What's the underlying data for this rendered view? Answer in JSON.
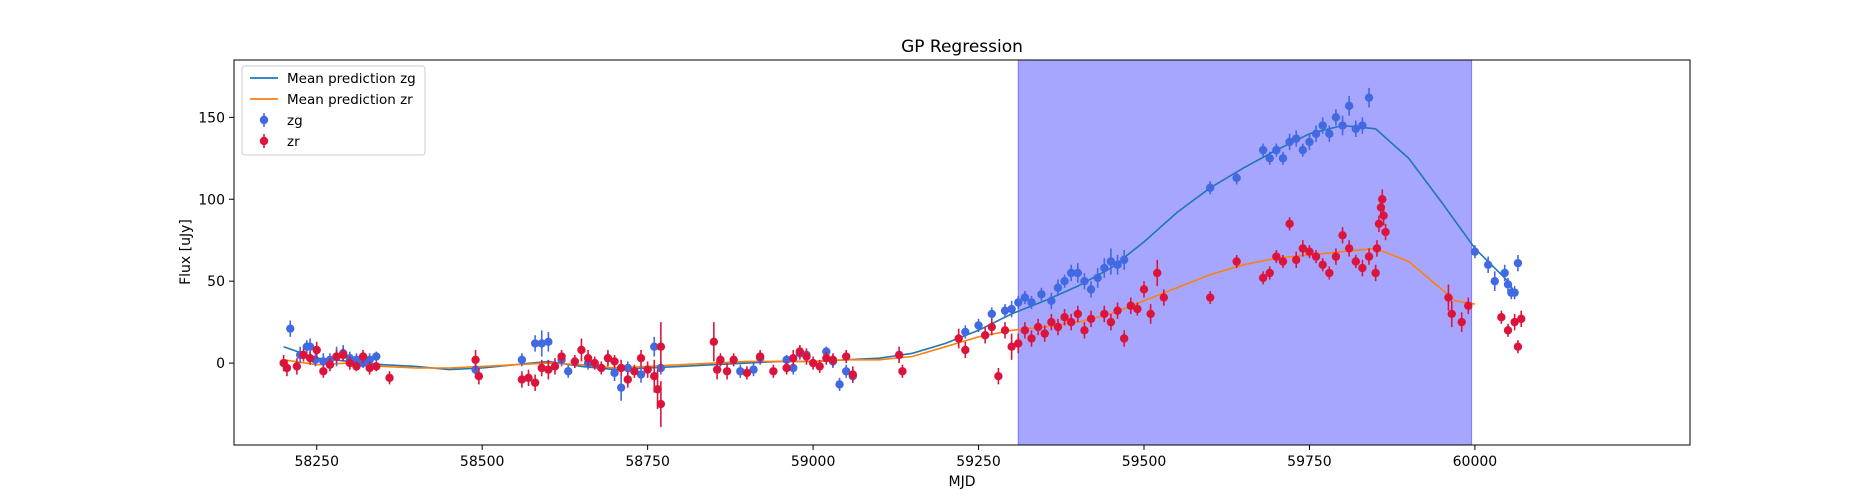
{
  "chart_data": {
    "type": "scatter",
    "title": "GP Regression",
    "xlabel": "MJD",
    "ylabel": "Flux [uJy]",
    "xlim": [
      58125,
      60325
    ],
    "ylim": [
      -50,
      185
    ],
    "xticks": [
      58250,
      58500,
      58750,
      59000,
      59250,
      59500,
      59750,
      60000
    ],
    "yticks": [
      0,
      50,
      100,
      150
    ],
    "grid": false,
    "legend_position": "top-left",
    "shaded_region": {
      "x_start": 59310,
      "x_end": 59995,
      "color": "#a6a6ff"
    },
    "legend": [
      {
        "label": "Mean prediction zg",
        "kind": "line",
        "color": "#1f77b4"
      },
      {
        "label": "Mean prediction zr",
        "kind": "line",
        "color": "#ff7f0e"
      },
      {
        "label": "zg",
        "kind": "marker",
        "color": "#4169e1"
      },
      {
        "label": "zr",
        "kind": "marker",
        "color": "#dc143c"
      }
    ],
    "lines": [
      {
        "name": "Mean prediction zg",
        "color": "#1f77b4",
        "x": [
          58200,
          58250,
          58300,
          58350,
          58400,
          58450,
          58500,
          58550,
          58600,
          58650,
          58700,
          58750,
          58800,
          58850,
          58900,
          58950,
          59000,
          59050,
          59100,
          59150,
          59200,
          59250,
          59300,
          59350,
          59400,
          59450,
          59500,
          59550,
          59600,
          59650,
          59700,
          59750,
          59800,
          59850,
          59900,
          59950,
          60000,
          60050,
          60060
        ],
        "y": [
          10,
          3,
          1,
          -1,
          -2,
          -4,
          -3,
          -1,
          1,
          -2,
          -4,
          -3,
          -2,
          -1,
          0,
          1,
          1,
          2,
          3,
          6,
          12,
          20,
          30,
          38,
          47,
          58,
          74,
          92,
          107,
          119,
          130,
          140,
          145,
          143,
          125,
          98,
          70,
          50,
          43
        ]
      },
      {
        "name": "Mean prediction zr",
        "color": "#ff7f0e",
        "x": [
          58200,
          58250,
          58300,
          58350,
          58400,
          58450,
          58500,
          58550,
          58600,
          58650,
          58700,
          58750,
          58800,
          58850,
          58900,
          58950,
          59000,
          59050,
          59100,
          59150,
          59200,
          59250,
          59300,
          59350,
          59400,
          59450,
          59500,
          59550,
          59600,
          59650,
          59700,
          59750,
          59800,
          59850,
          59900,
          59950,
          59970,
          60000
        ],
        "y": [
          2,
          -1,
          0,
          -2,
          -3,
          -3,
          -2,
          -1,
          0,
          -1,
          -3,
          -2,
          -1,
          0,
          1,
          1,
          1,
          2,
          2,
          4,
          10,
          16,
          20,
          22,
          25,
          30,
          38,
          46,
          54,
          60,
          64,
          66,
          68,
          70,
          62,
          45,
          38,
          36
        ]
      }
    ],
    "series": [
      {
        "name": "zg",
        "color": "#4169e1",
        "points": [
          [
            58210,
            21,
            5
          ],
          [
            58225,
            5,
            5
          ],
          [
            58235,
            10,
            4
          ],
          [
            58240,
            10,
            5
          ],
          [
            58248,
            2,
            4
          ],
          [
            58260,
            1,
            5
          ],
          [
            58270,
            2,
            4
          ],
          [
            58280,
            4,
            6
          ],
          [
            58290,
            6,
            5
          ],
          [
            58300,
            3,
            4
          ],
          [
            58310,
            2,
            4
          ],
          [
            58320,
            0,
            3
          ],
          [
            58330,
            2,
            4
          ],
          [
            58340,
            4,
            3
          ],
          [
            58490,
            -4,
            5
          ],
          [
            58560,
            2,
            4
          ],
          [
            58580,
            12,
            5
          ],
          [
            58590,
            12,
            8
          ],
          [
            58600,
            13,
            6
          ],
          [
            58620,
            2,
            4
          ],
          [
            58630,
            -5,
            4
          ],
          [
            58660,
            0,
            4
          ],
          [
            58690,
            3,
            4
          ],
          [
            58700,
            -6,
            5
          ],
          [
            58710,
            -15,
            8
          ],
          [
            58720,
            -3,
            4
          ],
          [
            58740,
            -7,
            5
          ],
          [
            58760,
            10,
            6
          ],
          [
            58770,
            -3,
            4
          ],
          [
            58890,
            -5,
            4
          ],
          [
            58910,
            -4,
            4
          ],
          [
            58920,
            3,
            4
          ],
          [
            58960,
            2,
            3
          ],
          [
            58970,
            -3,
            4
          ],
          [
            58980,
            6,
            4
          ],
          [
            58990,
            5,
            3
          ],
          [
            59020,
            7,
            3
          ],
          [
            59030,
            1,
            4
          ],
          [
            59040,
            -13,
            4
          ],
          [
            59050,
            -5,
            4
          ],
          [
            59060,
            -8,
            4
          ],
          [
            59230,
            19,
            4
          ],
          [
            59250,
            23,
            4
          ],
          [
            59270,
            30,
            4
          ],
          [
            59290,
            32,
            4
          ],
          [
            59300,
            33,
            5
          ],
          [
            59310,
            37,
            4
          ],
          [
            59320,
            40,
            4
          ],
          [
            59330,
            37,
            4
          ],
          [
            59345,
            42,
            4
          ],
          [
            59360,
            38,
            5
          ],
          [
            59370,
            46,
            5
          ],
          [
            59380,
            50,
            4
          ],
          [
            59390,
            55,
            5
          ],
          [
            59400,
            55,
            6
          ],
          [
            59410,
            50,
            5
          ],
          [
            59420,
            45,
            5
          ],
          [
            59430,
            52,
            6
          ],
          [
            59440,
            58,
            6
          ],
          [
            59450,
            62,
            8
          ],
          [
            59460,
            60,
            6
          ],
          [
            59470,
            63,
            6
          ],
          [
            59600,
            107,
            4
          ],
          [
            59640,
            113,
            4
          ],
          [
            59680,
            130,
            4
          ],
          [
            59690,
            125,
            4
          ],
          [
            59700,
            130,
            4
          ],
          [
            59710,
            125,
            4
          ],
          [
            59720,
            135,
            5
          ],
          [
            59730,
            137,
            5
          ],
          [
            59740,
            130,
            4
          ],
          [
            59750,
            135,
            5
          ],
          [
            59760,
            140,
            5
          ],
          [
            59770,
            145,
            5
          ],
          [
            59780,
            140,
            5
          ],
          [
            59790,
            150,
            5
          ],
          [
            59800,
            145,
            6
          ],
          [
            59810,
            157,
            6
          ],
          [
            59820,
            143,
            5
          ],
          [
            59830,
            145,
            5
          ],
          [
            59840,
            162,
            6
          ],
          [
            60000,
            68,
            4
          ],
          [
            60020,
            60,
            5
          ],
          [
            60030,
            50,
            6
          ],
          [
            60045,
            55,
            5
          ],
          [
            60050,
            48,
            4
          ],
          [
            60055,
            43,
            4
          ],
          [
            60060,
            43,
            4
          ],
          [
            60065,
            61,
            5
          ]
        ]
      },
      {
        "name": "zr",
        "color": "#dc143c",
        "points": [
          [
            58200,
            0,
            5
          ],
          [
            58205,
            -3,
            5
          ],
          [
            58220,
            -2,
            5
          ],
          [
            58230,
            5,
            4
          ],
          [
            58240,
            3,
            4
          ],
          [
            58250,
            8,
            5
          ],
          [
            58260,
            -5,
            4
          ],
          [
            58270,
            -1,
            4
          ],
          [
            58280,
            4,
            4
          ],
          [
            58290,
            5,
            4
          ],
          [
            58300,
            0,
            4
          ],
          [
            58310,
            -2,
            3
          ],
          [
            58320,
            4,
            4
          ],
          [
            58330,
            -3,
            4
          ],
          [
            58340,
            -2,
            3
          ],
          [
            58360,
            -9,
            4
          ],
          [
            58490,
            2,
            6
          ],
          [
            58495,
            -8,
            5
          ],
          [
            58560,
            -10,
            5
          ],
          [
            58570,
            -9,
            5
          ],
          [
            58580,
            -12,
            5
          ],
          [
            58590,
            -3,
            5
          ],
          [
            58600,
            -4,
            6
          ],
          [
            58610,
            -2,
            5
          ],
          [
            58620,
            4,
            4
          ],
          [
            58640,
            1,
            4
          ],
          [
            58650,
            8,
            7
          ],
          [
            58660,
            3,
            5
          ],
          [
            58670,
            0,
            4
          ],
          [
            58680,
            -3,
            4
          ],
          [
            58690,
            3,
            5
          ],
          [
            58700,
            1,
            4
          ],
          [
            58710,
            -3,
            5
          ],
          [
            58720,
            -10,
            5
          ],
          [
            58730,
            -5,
            4
          ],
          [
            58740,
            3,
            5
          ],
          [
            58750,
            -4,
            5
          ],
          [
            58760,
            -8,
            10
          ],
          [
            58765,
            -16,
            12
          ],
          [
            58770,
            -25,
            14
          ],
          [
            58770,
            10,
            15
          ],
          [
            58850,
            13,
            12
          ],
          [
            58855,
            -4,
            6
          ],
          [
            58860,
            2,
            4
          ],
          [
            58870,
            -5,
            5
          ],
          [
            58880,
            2,
            4
          ],
          [
            58900,
            -6,
            4
          ],
          [
            58920,
            4,
            4
          ],
          [
            58940,
            -5,
            4
          ],
          [
            58960,
            -3,
            4
          ],
          [
            58970,
            3,
            5
          ],
          [
            58980,
            7,
            4
          ],
          [
            58990,
            4,
            5
          ],
          [
            59000,
            0,
            4
          ],
          [
            59010,
            -2,
            4
          ],
          [
            59020,
            3,
            4
          ],
          [
            59030,
            2,
            4
          ],
          [
            59050,
            4,
            4
          ],
          [
            59060,
            -7,
            5
          ],
          [
            59130,
            5,
            5
          ],
          [
            59135,
            -5,
            4
          ],
          [
            59220,
            15,
            6
          ],
          [
            59230,
            8,
            5
          ],
          [
            59260,
            17,
            5
          ],
          [
            59270,
            22,
            5
          ],
          [
            59280,
            -8,
            5
          ],
          [
            59290,
            20,
            5
          ],
          [
            59300,
            10,
            8
          ],
          [
            59310,
            12,
            6
          ],
          [
            59320,
            20,
            5
          ],
          [
            59330,
            15,
            5
          ],
          [
            59340,
            22,
            5
          ],
          [
            59350,
            18,
            5
          ],
          [
            59360,
            25,
            5
          ],
          [
            59370,
            22,
            5
          ],
          [
            59380,
            28,
            5
          ],
          [
            59390,
            25,
            5
          ],
          [
            59400,
            30,
            5
          ],
          [
            59410,
            20,
            5
          ],
          [
            59420,
            27,
            5
          ],
          [
            59440,
            30,
            5
          ],
          [
            59450,
            25,
            5
          ],
          [
            59460,
            32,
            5
          ],
          [
            59470,
            15,
            5
          ],
          [
            59480,
            35,
            5
          ],
          [
            59490,
            33,
            4
          ],
          [
            59500,
            45,
            5
          ],
          [
            59510,
            30,
            6
          ],
          [
            59520,
            55,
            8
          ],
          [
            59530,
            40,
            5
          ],
          [
            59600,
            40,
            4
          ],
          [
            59640,
            62,
            4
          ],
          [
            59680,
            52,
            4
          ],
          [
            59690,
            55,
            4
          ],
          [
            59700,
            65,
            4
          ],
          [
            59710,
            62,
            4
          ],
          [
            59720,
            85,
            4
          ],
          [
            59730,
            63,
            5
          ],
          [
            59740,
            70,
            5
          ],
          [
            59750,
            68,
            4
          ],
          [
            59760,
            65,
            4
          ],
          [
            59770,
            60,
            4
          ],
          [
            59780,
            55,
            4
          ],
          [
            59790,
            65,
            5
          ],
          [
            59800,
            78,
            5
          ],
          [
            59810,
            70,
            5
          ],
          [
            59820,
            62,
            4
          ],
          [
            59830,
            58,
            5
          ],
          [
            59840,
            65,
            5
          ],
          [
            59850,
            55,
            5
          ],
          [
            59852,
            70,
            5
          ],
          [
            59855,
            85,
            5
          ],
          [
            59858,
            95,
            6
          ],
          [
            59860,
            100,
            6
          ],
          [
            59862,
            90,
            6
          ],
          [
            59865,
            80,
            5
          ],
          [
            59960,
            40,
            8
          ],
          [
            59965,
            30,
            8
          ],
          [
            59980,
            25,
            6
          ],
          [
            59990,
            35,
            5
          ],
          [
            60040,
            28,
            4
          ],
          [
            60050,
            20,
            4
          ],
          [
            60060,
            25,
            5
          ],
          [
            60065,
            10,
            4
          ],
          [
            60070,
            27,
            5
          ]
        ]
      }
    ]
  }
}
